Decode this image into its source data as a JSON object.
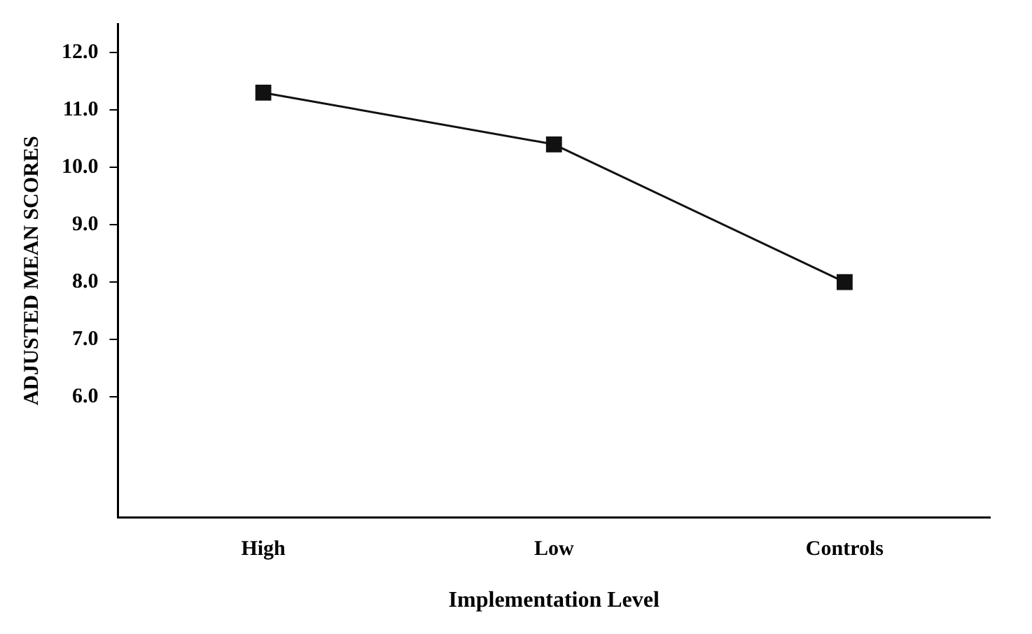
{
  "chart_data": {
    "type": "line",
    "xlabel": "Implementation Level",
    "ylabel": "ADJUSTED MEAN SCORES",
    "categories": [
      "High",
      "Low",
      "Controls"
    ],
    "series": [
      {
        "color": "#111111",
        "values": [
          11.3,
          10.4,
          8.0
        ]
      }
    ],
    "ylim": [
      3.9,
      12.5
    ],
    "yticks": [
      {
        "value": 6,
        "label": "6.0"
      },
      {
        "value": 7,
        "label": "7.0"
      },
      {
        "value": 8,
        "label": "8.0"
      },
      {
        "value": 9,
        "label": "9.0"
      },
      {
        "value": 10,
        "label": "10.0"
      },
      {
        "value": 11,
        "label": "11.0"
      },
      {
        "value": 12,
        "label": "12.0"
      }
    ],
    "grid": false,
    "legend": false,
    "marker": "square",
    "line_style": "solid"
  }
}
